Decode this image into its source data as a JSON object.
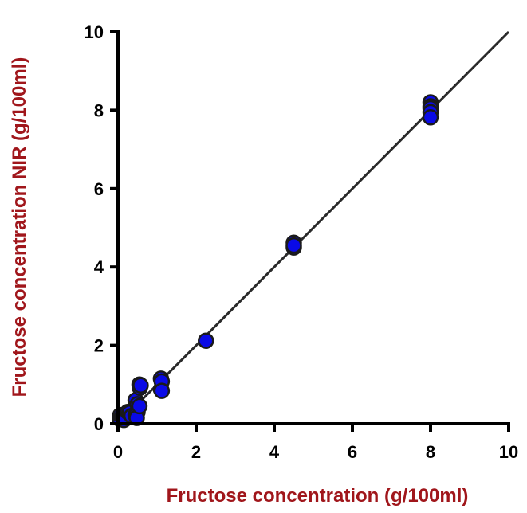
{
  "chart_data": {
    "type": "scatter",
    "title": "",
    "xlabel": "Fructose concentration (g/100ml)",
    "ylabel": "Fructose concentration NIR (g/100ml)",
    "xlim": [
      0,
      10
    ],
    "ylim": [
      0,
      10
    ],
    "xticks": [
      "0",
      "2",
      "4",
      "6",
      "8",
      "10"
    ],
    "yticks": [
      "0",
      "2",
      "4",
      "6",
      "8",
      "10"
    ],
    "grid": false,
    "legend": "none",
    "reference_line": {
      "type": "identity",
      "from": [
        0,
        0
      ],
      "to": [
        10,
        10
      ],
      "color": "#2a2a2a"
    },
    "marker_color": "#0a0ae6",
    "marker_edge_color": "#1a1a1a",
    "label_color": "#a0161b",
    "series": [
      {
        "points": [
          [
            0.05,
            0.12
          ],
          [
            0.06,
            0.22
          ],
          [
            0.1,
            0.18
          ],
          [
            0.15,
            0.1
          ],
          [
            0.25,
            0.3
          ],
          [
            0.3,
            0.28
          ],
          [
            0.35,
            0.2
          ],
          [
            0.45,
            0.22
          ],
          [
            0.5,
            0.3
          ],
          [
            0.48,
            0.15
          ],
          [
            0.45,
            0.6
          ],
          [
            0.5,
            0.5
          ],
          [
            0.55,
            0.45
          ],
          [
            0.55,
            1.0
          ],
          [
            0.56,
            0.92
          ],
          [
            0.58,
            0.98
          ],
          [
            1.1,
            1.15
          ],
          [
            1.1,
            0.88
          ],
          [
            1.12,
            1.08
          ],
          [
            1.12,
            0.84
          ],
          [
            2.25,
            2.12
          ],
          [
            4.5,
            4.62
          ],
          [
            4.5,
            4.5
          ],
          [
            4.5,
            4.55
          ],
          [
            8.0,
            8.2
          ],
          [
            8.0,
            8.1
          ],
          [
            8.0,
            8.05
          ],
          [
            8.0,
            7.95
          ],
          [
            8.0,
            7.82
          ]
        ]
      }
    ]
  }
}
